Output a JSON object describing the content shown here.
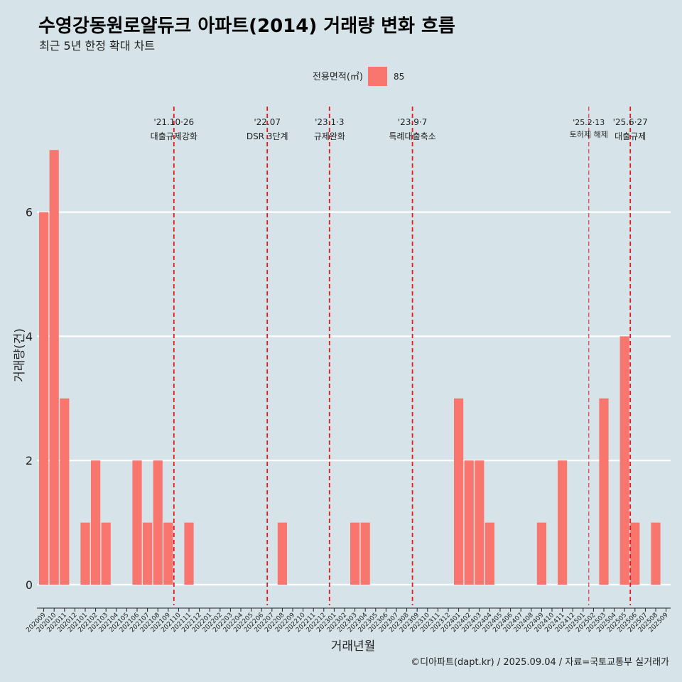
{
  "chart_data": {
    "type": "bar",
    "title": "수영강동원로얄듀크 아파트(2014) 거래량 변화 흐름",
    "subtitle": "최근 5년 한정 확대 차트",
    "xlabel": "거래년월",
    "ylabel": "거래량(건)",
    "ylim": [
      0,
      7
    ],
    "yticks": [
      0,
      2,
      4,
      6
    ],
    "grid": true,
    "legend": {
      "title": "전용면적(㎡)",
      "placement": "top-center",
      "entries": [
        {
          "label": "85",
          "color": "#f8766d"
        }
      ]
    },
    "categories": [
      "202009",
      "202010",
      "202011",
      "202012",
      "202101",
      "202102",
      "202103",
      "202104",
      "202105",
      "202106",
      "202107",
      "202108",
      "202109",
      "202110",
      "202111",
      "202112",
      "202201",
      "202202",
      "202203",
      "202204",
      "202205",
      "202206",
      "202207",
      "202208",
      "202209",
      "202210",
      "202211",
      "202212",
      "202301",
      "202302",
      "202303",
      "202304",
      "202305",
      "202306",
      "202307",
      "202308",
      "202309",
      "202310",
      "202311",
      "202312",
      "202401",
      "202402",
      "202403",
      "202404",
      "202405",
      "202406",
      "202407",
      "202408",
      "202409",
      "202410",
      "202411",
      "202412",
      "202501",
      "202502",
      "202503",
      "202504",
      "202505",
      "202506",
      "202507",
      "202508",
      "202509"
    ],
    "series": [
      {
        "name": "85",
        "color": "#f8766d",
        "values": [
          6,
          7,
          3,
          0,
          1,
          2,
          1,
          0,
          0,
          2,
          1,
          2,
          1,
          0,
          1,
          0,
          0,
          0,
          0,
          0,
          0,
          0,
          0,
          1,
          0,
          0,
          0,
          0,
          0,
          0,
          1,
          1,
          0,
          0,
          0,
          0,
          0,
          0,
          0,
          0,
          3,
          2,
          2,
          1,
          0,
          0,
          0,
          0,
          1,
          0,
          2,
          0,
          0,
          0,
          3,
          0,
          4,
          1,
          0,
          1,
          0
        ]
      }
    ],
    "events": [
      {
        "date": "'21.10·26",
        "label": "대출규제강화",
        "x": "202110",
        "small": false
      },
      {
        "date": "'22.07",
        "label": "DSR 3단계",
        "x": "202207",
        "small": false
      },
      {
        "date": "'23.1·3",
        "label": "규제완화",
        "x": "202301",
        "small": false
      },
      {
        "date": "'23.9·7",
        "label": "특례대출축소",
        "x": "202309",
        "small": false
      },
      {
        "date": "'25.2·13",
        "label": "토허제 해제",
        "x": "202502",
        "small": true
      },
      {
        "date": "'25.6·27",
        "label": "대출규제",
        "x": "202506",
        "small": false
      }
    ],
    "event_line_color": "#e41a1c",
    "grid_color": "#ffffff",
    "background": "#d6e4ea"
  },
  "caption": "©디아파트(dapt.kr) / 2025.09.04 / 자료=국토교통부 실거래가"
}
